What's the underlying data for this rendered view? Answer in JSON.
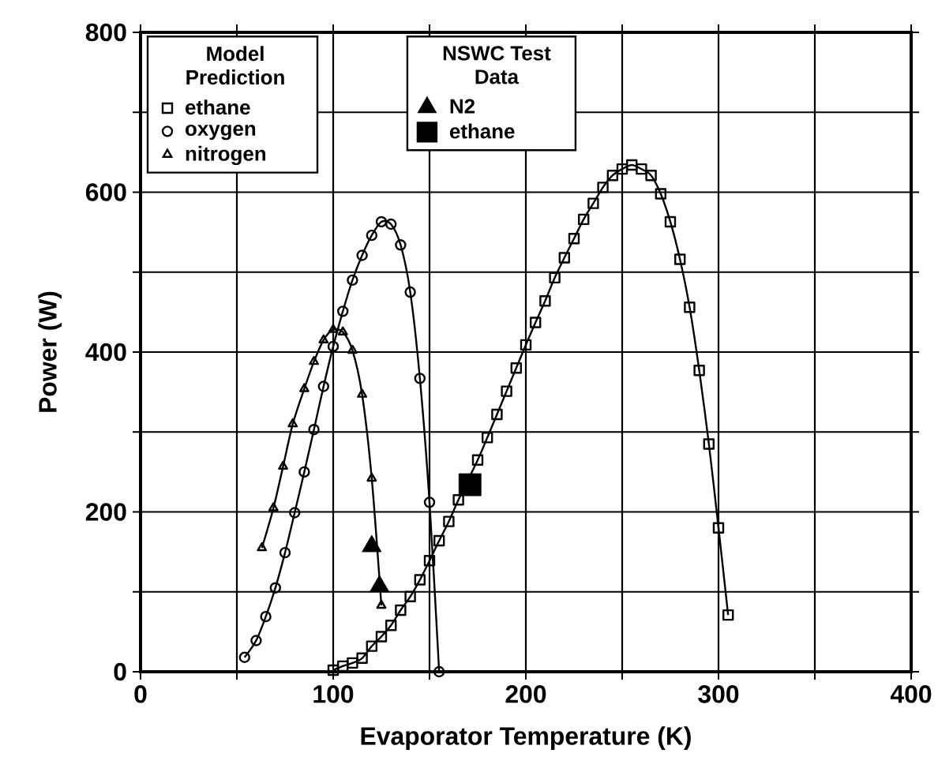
{
  "chart_data": {
    "type": "line",
    "xlabel": "Evaporator Temperature (K)",
    "ylabel": "Power (W)",
    "xlim": [
      0,
      400
    ],
    "ylim": [
      0,
      800
    ],
    "xticks": [
      0,
      {
        "value": 50,
        "label": null
      },
      100,
      {
        "value": 150,
        "label": null
      },
      200,
      {
        "value": 250,
        "label": null
      },
      300,
      {
        "value": 350,
        "label": null
      },
      400
    ],
    "yticks": [
      0,
      {
        "value": 100,
        "label": null
      },
      200,
      {
        "value": 300,
        "label": null
      },
      400,
      {
        "value": 500,
        "label": null
      },
      600,
      {
        "value": 700,
        "label": null
      },
      800
    ],
    "grid": true,
    "legend": "top left",
    "legend_title": "Model Prediction",
    "annotations": [
      "NSWC Test Data"
    ],
    "series": [
      {
        "name": "ethane",
        "marker": "square",
        "color": "#000000",
        "x": [
          100,
          105,
          110,
          115,
          120,
          125,
          130,
          135,
          140,
          145,
          150,
          155,
          160,
          165,
          175,
          180,
          185,
          190,
          195,
          200,
          205,
          210,
          215,
          220,
          225,
          230,
          235,
          240,
          245,
          250,
          255,
          260,
          265,
          270,
          275,
          280,
          285,
          290,
          295,
          300,
          305
        ],
        "values": [
          2,
          7,
          11,
          17,
          32,
          44,
          58,
          77,
          94,
          115,
          139,
          164,
          188,
          215,
          265,
          293,
          322,
          351,
          380,
          409,
          437,
          464,
          493,
          518,
          542,
          566,
          586,
          606,
          621,
          629,
          634,
          629,
          621,
          598,
          563,
          516,
          456,
          377,
          285,
          180,
          71
        ]
      },
      {
        "name": "oxygen",
        "marker": "circle",
        "color": "#000000",
        "x": [
          54,
          60,
          65,
          70,
          75,
          80,
          85,
          90,
          95,
          100,
          105,
          110,
          115,
          120,
          125,
          130,
          135,
          140,
          145,
          150,
          155
        ],
        "values": [
          18,
          39,
          69,
          105,
          149,
          199,
          250,
          303,
          357,
          407,
          451,
          490,
          521,
          546,
          563,
          560,
          534,
          475,
          367,
          212,
          0
        ]
      },
      {
        "name": "nitrogen",
        "marker": "triangle",
        "color": "#000000",
        "x": [
          63,
          69,
          74,
          79,
          85,
          90,
          95,
          100,
          105,
          110,
          115,
          120,
          125
        ],
        "values": [
          155,
          205,
          257,
          310,
          354,
          388,
          415,
          428,
          425,
          402,
          347,
          242,
          83
        ]
      },
      {
        "name": "N2",
        "type": "scatter",
        "marker": "triangle",
        "color": "#000000",
        "x": [
          120,
          124
        ],
        "values": [
          157,
          107
        ]
      },
      {
        "name": "ethane",
        "type": "scatter",
        "marker": "square",
        "color": "#000000",
        "x": [
          171
        ],
        "values": [
          234
        ]
      }
    ]
  }
}
